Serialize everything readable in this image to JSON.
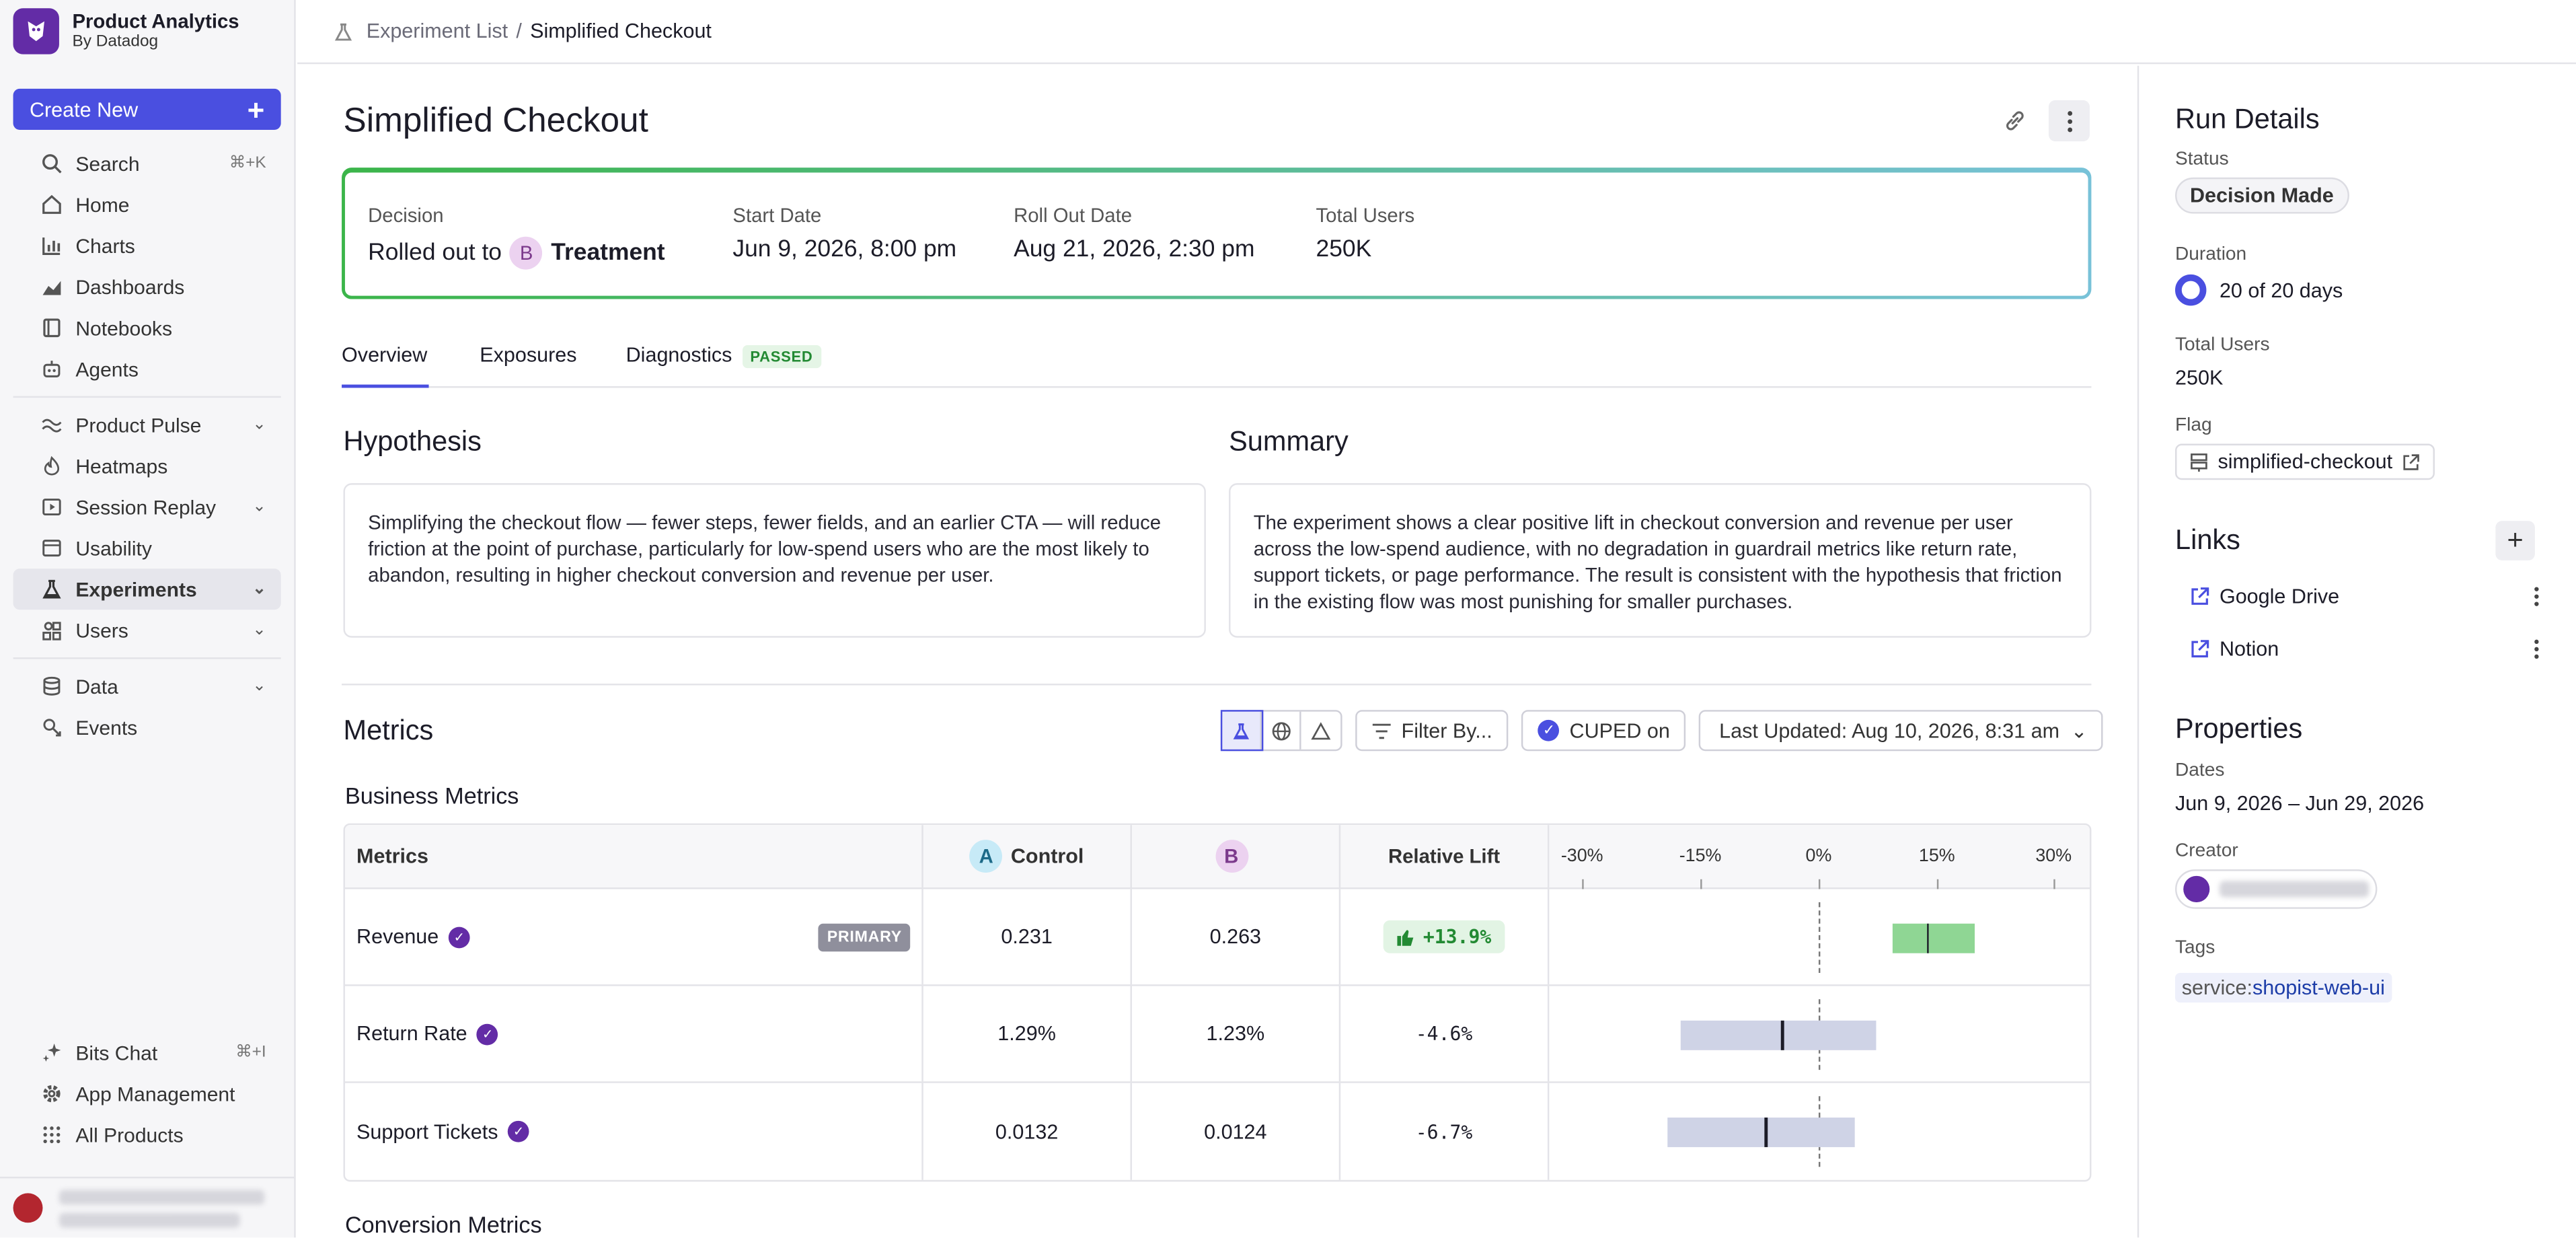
{
  "app": {
    "title": "Product Analytics",
    "subtitle": "By Datadog",
    "create_label": "Create New"
  },
  "nav": {
    "search": {
      "label": "Search",
      "shortcut": "⌘+K"
    },
    "home": "Home",
    "charts": "Charts",
    "dashboards": "Dashboards",
    "notebooks": "Notebooks",
    "agents": "Agents",
    "product_pulse": "Product Pulse",
    "heatmaps": "Heatmaps",
    "session_replay": "Session Replay",
    "usability": "Usability",
    "experiments": "Experiments",
    "users": "Users",
    "data": "Data",
    "events": "Events",
    "bits_chat": {
      "label": "Bits Chat",
      "shortcut": "⌘+I"
    },
    "app_management": "App Management",
    "all_products": "All Products"
  },
  "breadcrumb": {
    "parent": "Experiment List",
    "separator": "/",
    "current": "Simplified Checkout"
  },
  "experiment": {
    "title": "Simplified Checkout",
    "decision_label": "Decision",
    "decision_prefix": "Rolled out to",
    "decision_badge": "B",
    "decision_variant": "Treatment",
    "start_label": "Start Date",
    "start_value": "Jun 9, 2026, 8:00 pm",
    "rollout_label": "Roll Out Date",
    "rollout_value": "Aug 21, 2026, 2:30 pm",
    "users_label": "Total Users",
    "users_value": "250K"
  },
  "tabs": {
    "overview": "Overview",
    "exposures": "Exposures",
    "diagnostics": "Diagnostics",
    "diagnostics_badge": "PASSED"
  },
  "hypothesis": {
    "heading": "Hypothesis",
    "text": "Simplifying the checkout flow — fewer steps, fewer fields, and an earlier CTA — will reduce friction at the point of purchase, particularly for low-spend users who are the most likely to abandon, resulting in higher checkout conversion and revenue per user."
  },
  "summary": {
    "heading": "Summary",
    "text": "The experiment shows a clear positive lift in checkout conversion and revenue per user across the low-spend audience, with no degradation in guardrail metrics like return rate, support tickets, or page performance. The result is consistent with the hypothesis that friction in the existing flow was most punishing for smaller purchases."
  },
  "metrics": {
    "heading": "Metrics",
    "filter_label": "Filter By...",
    "cuped_label": "CUPED on",
    "last_updated": "Last Updated: Aug 10, 2026, 8:31 am",
    "business_heading": "Business Metrics",
    "conversion_heading": "Conversion Metrics",
    "columns": {
      "metric": "Metrics",
      "control_badge": "A",
      "control": "Control",
      "treatment_badge": "B",
      "lift": "Relative Lift"
    },
    "axis": [
      "-30%",
      "-15%",
      "0%",
      "15%",
      "30%"
    ],
    "primary_label": "PRIMARY",
    "rows": [
      {
        "name": "Revenue",
        "control": "0.231",
        "treatment": "0.263",
        "lift": "+13.9%"
      },
      {
        "name": "Return Rate",
        "control": "1.29%",
        "treatment": "1.23%",
        "lift": "-4.6%"
      },
      {
        "name": "Support Tickets",
        "control": "0.0132",
        "treatment": "0.0124",
        "lift": "-6.7%"
      }
    ]
  },
  "chart_data": {
    "type": "interval",
    "xlim": [
      -30,
      30
    ],
    "ticks": [
      -30,
      -15,
      0,
      15,
      30
    ],
    "series": [
      {
        "metric": "Revenue",
        "point": 13.9,
        "lower": 9.5,
        "upper": 20.0,
        "color": "#8fd694"
      },
      {
        "metric": "Return Rate",
        "point": -4.6,
        "lower": -17.4,
        "upper": 7.4,
        "color": "#cfd3e6"
      },
      {
        "metric": "Support Tickets",
        "point": -6.7,
        "lower": -19.2,
        "upper": 4.7,
        "color": "#cfd3e6"
      }
    ]
  },
  "run_details": {
    "heading": "Run Details",
    "status_label": "Status",
    "status_value": "Decision Made",
    "duration_label": "Duration",
    "duration_value": "20 of 20 days",
    "duration_progress": 1.0,
    "users_label": "Total Users",
    "users_value": "250K",
    "flag_label": "Flag",
    "flag_value": "simplified-checkout"
  },
  "links": {
    "heading": "Links",
    "items": [
      "Google Drive",
      "Notion"
    ]
  },
  "properties": {
    "heading": "Properties",
    "dates_label": "Dates",
    "dates_value": "Jun 9, 2026 – Jun 29, 2026",
    "creator_label": "Creator",
    "tags_label": "Tags",
    "tag_key": "service:",
    "tag_value": "shopist-web-ui"
  }
}
